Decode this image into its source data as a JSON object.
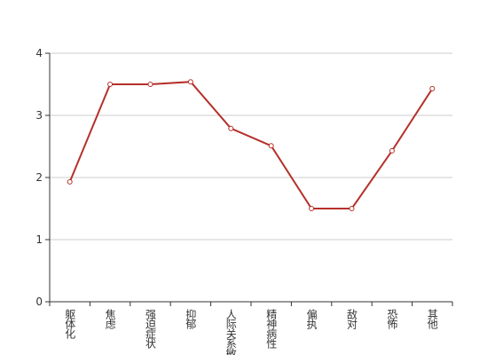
{
  "chart_data": {
    "type": "line",
    "categories": [
      "躯体化",
      "焦虑",
      "强迫症状",
      "抑郁",
      "人际关系敏感",
      "精神病性",
      "偏执",
      "敌对",
      "恐怖",
      "其他"
    ],
    "values": [
      1.93,
      3.5,
      3.5,
      3.54,
      2.79,
      2.51,
      1.5,
      1.5,
      2.43,
      3.43
    ],
    "color": "#b5302a",
    "ylim": [
      0,
      4
    ],
    "yticks": [
      0,
      1,
      2,
      3,
      4
    ],
    "grid": true
  }
}
